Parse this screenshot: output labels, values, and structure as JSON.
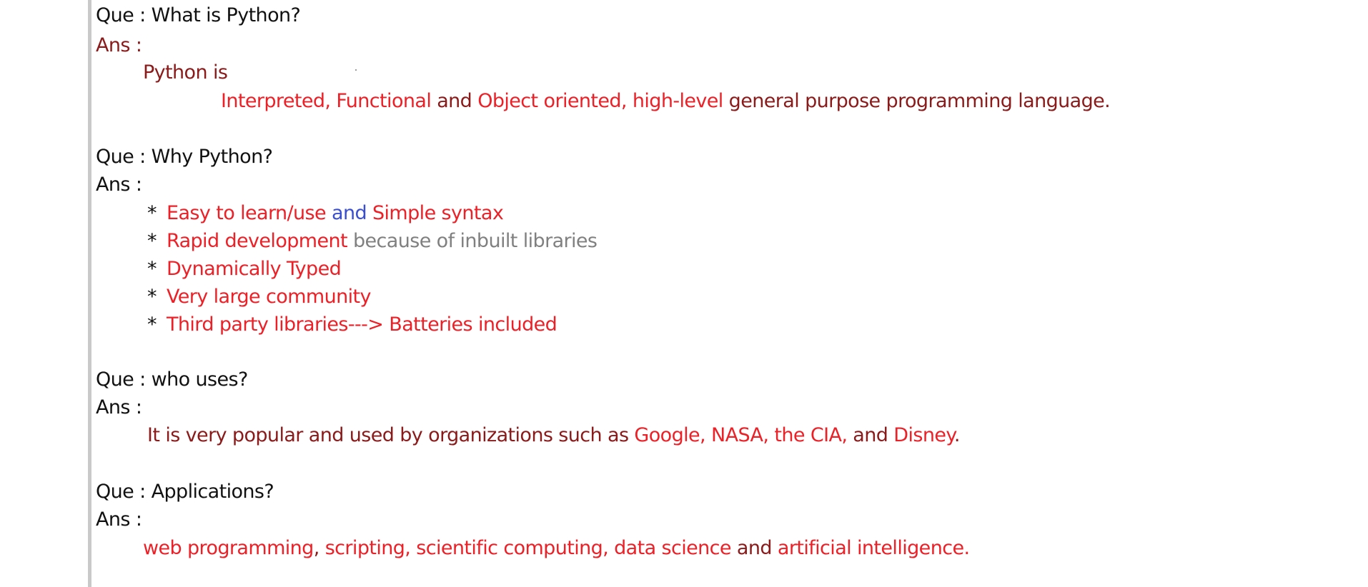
{
  "sections": [
    {
      "que_label": "Que :",
      "question": "  What is Python?",
      "ans_label": "Ans :",
      "intro": "Python is",
      "parts": {
        "p1": "Interpreted, Functional",
        "p2": " and ",
        "p3": "Object oriented, high-level",
        "p4": " general purpose programming language."
      }
    },
    {
      "que_label": "Que :",
      "question": " Why Python?",
      "ans_label": "Ans :",
      "bullet_marker": "*",
      "bullets": [
        {
          "a": "Easy to learn/use ",
          "b": "and",
          "c": "  Simple syntax"
        },
        {
          "a": "Rapid  development ",
          "b": " because of inbuilt libraries"
        },
        {
          "a": "Dynamically Typed"
        },
        {
          "a": "Very large community"
        },
        {
          "a": "Third party libraries---> Batteries included"
        }
      ]
    },
    {
      "que_label": "Que :",
      "question": " who uses?",
      "ans_label": "Ans :",
      "parts": {
        "p1": "It is very popular and used by organizations such as ",
        "p2": "Google, NASA, the CIA,",
        "p3": " and ",
        "p4": "Disney",
        "p5": "."
      }
    },
    {
      "que_label": "Que :",
      "question": " Applications?",
      "ans_label": "Ans :",
      "parts": {
        "p1": "web programming",
        "p2": ", ",
        "p3": "scripting, scientific computing, data science",
        "p4": " and ",
        "p5": "artificial intelligence."
      }
    }
  ],
  "colors": {
    "question_text": "#111111",
    "answer_label_first": "#8b1a1a",
    "emphasis_red": "#ec2027",
    "body_maroon": "#8b1a1a",
    "connector_blue": "#3a4fd0",
    "muted_gray": "#808080",
    "margin_bar": "#c9c9c9"
  }
}
